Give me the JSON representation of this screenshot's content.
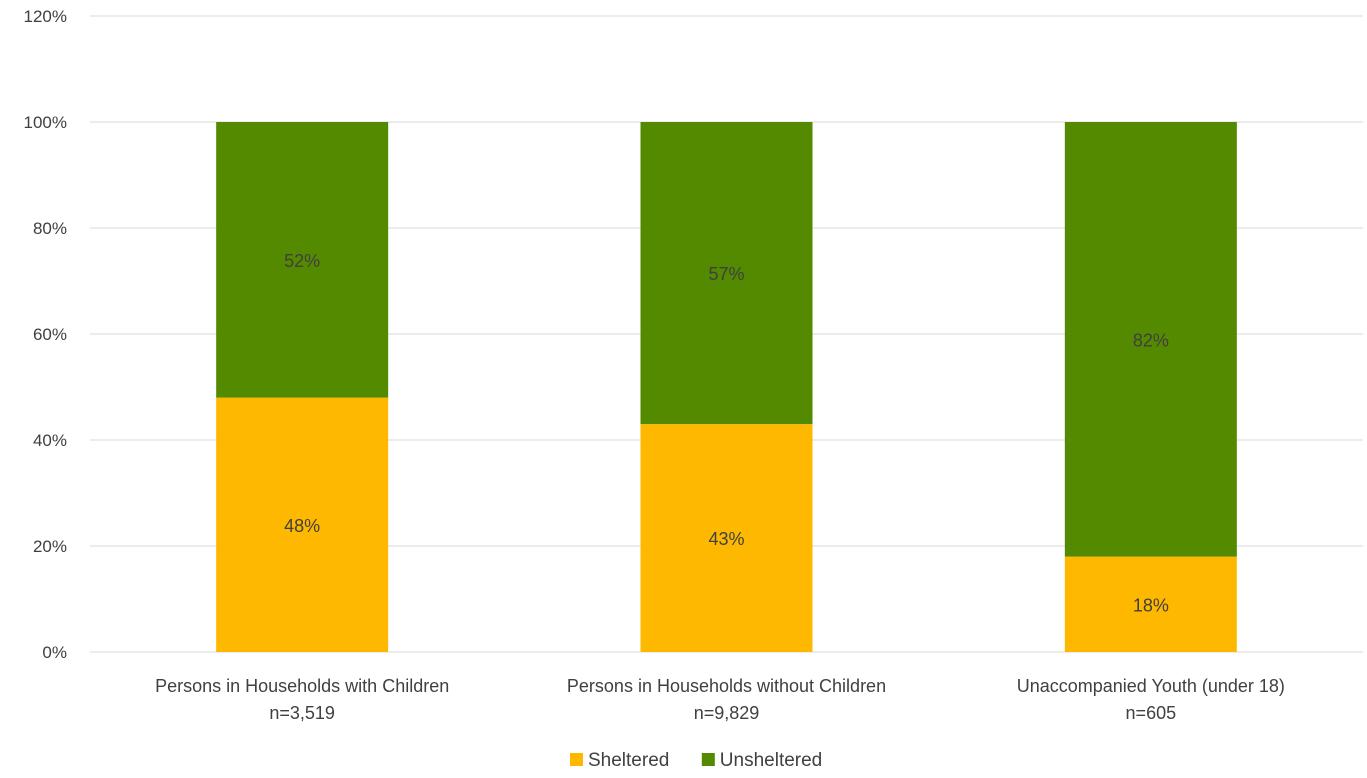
{
  "chart_data": {
    "type": "bar",
    "stacked": true,
    "title": "",
    "xlabel": "",
    "ylabel": "",
    "ylim": [
      0,
      120
    ],
    "yticks": [
      "0%",
      "20%",
      "40%",
      "60%",
      "80%",
      "100%",
      "120%"
    ],
    "grid": true,
    "legend_position": "bottom",
    "categories": [
      {
        "label": "Persons in Households with Children",
        "n": "n=3,519"
      },
      {
        "label": "Persons in Households without Children",
        "n": "n=9,829"
      },
      {
        "label": "Unaccompanied Youth (under 18)",
        "n": "n=605"
      }
    ],
    "series": [
      {
        "name": "Sheltered",
        "color": "#FFB800",
        "values": [
          48,
          43,
          18
        ],
        "labels": [
          "48%",
          "43%",
          "18%"
        ]
      },
      {
        "name": "Unsheltered",
        "color": "#538A00",
        "values": [
          52,
          57,
          82
        ],
        "labels": [
          "52%",
          "57%",
          "82%"
        ]
      }
    ]
  }
}
